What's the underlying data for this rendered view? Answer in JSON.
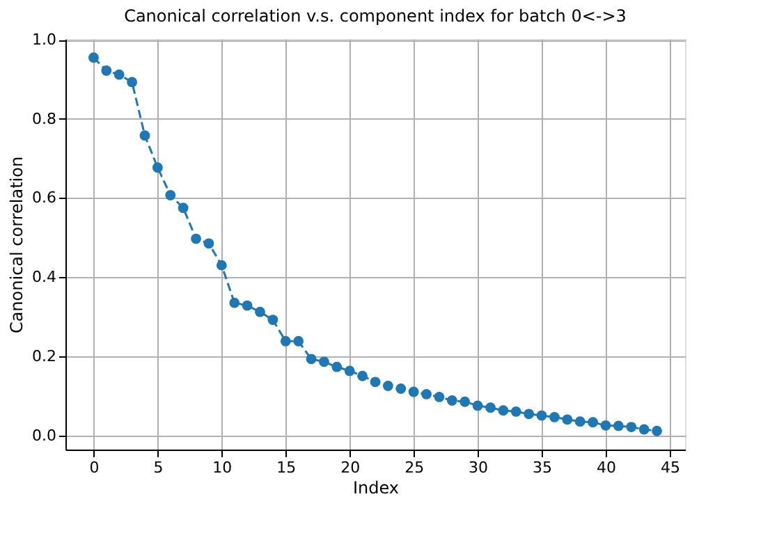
{
  "chart_data": {
    "type": "line",
    "title": "Canonical correlation v.s. component index for batch 0<->3",
    "xlabel": "Index",
    "ylabel": "Canonical correlation",
    "x": [
      0,
      1,
      2,
      3,
      4,
      5,
      6,
      7,
      8,
      9,
      10,
      11,
      12,
      13,
      14,
      15,
      16,
      17,
      18,
      19,
      20,
      21,
      22,
      23,
      24,
      25,
      26,
      27,
      28,
      29,
      30,
      31,
      32,
      33,
      34,
      35,
      36,
      37,
      38,
      39,
      40,
      41,
      42,
      43,
      44
    ],
    "series": [
      {
        "color": "#1f77b4",
        "values": [
          0.955,
          0.922,
          0.912,
          0.893,
          0.758,
          0.677,
          0.607,
          0.575,
          0.497,
          0.485,
          0.43,
          0.335,
          0.328,
          0.312,
          0.292,
          0.238,
          0.238,
          0.193,
          0.186,
          0.173,
          0.163,
          0.15,
          0.135,
          0.125,
          0.118,
          0.11,
          0.104,
          0.097,
          0.088,
          0.085,
          0.075,
          0.07,
          0.063,
          0.06,
          0.054,
          0.05,
          0.046,
          0.04,
          0.035,
          0.033,
          0.025,
          0.024,
          0.021,
          0.015,
          0.011
        ]
      }
    ],
    "xlim": [
      -2.2,
      46.2
    ],
    "ylim": [
      -0.036,
      1.002
    ],
    "xticks": [
      0,
      5,
      10,
      15,
      20,
      25,
      30,
      35,
      40,
      45
    ],
    "yticks": [
      {
        "value": 0,
        "label": "0.0"
      },
      {
        "value": 0.2,
        "label": "0.2"
      },
      {
        "value": 0.4,
        "label": "0.4"
      },
      {
        "value": 0.6,
        "label": "0.6"
      },
      {
        "value": 0.8,
        "label": "0.8"
      },
      {
        "value": 1,
        "label": "1.0"
      }
    ],
    "grid": true,
    "marker": "circle",
    "line_style": "dashed",
    "legend": false
  }
}
